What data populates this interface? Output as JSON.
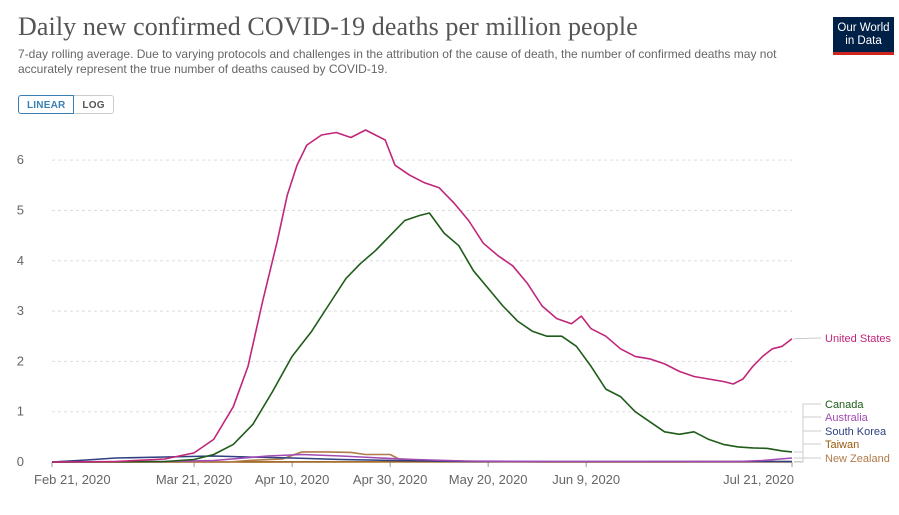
{
  "header": {
    "title": "Daily new confirmed COVID-19 deaths per million people",
    "subtitle": "7-day rolling average. Due to varying protocols and challenges in the attribution of the cause of death, the number of confirmed deaths may not accurately represent the true number of deaths caused by COVID-19.",
    "logo_line1": "Our World",
    "logo_line2": "in Data"
  },
  "controls": {
    "linear_label": "LINEAR",
    "log_label": "LOG",
    "selected": "LINEAR"
  },
  "chart_data": {
    "type": "line",
    "title": "Daily new confirmed COVID-19 deaths per million people",
    "xlabel": "",
    "ylabel": "",
    "ylim": [
      0,
      6.5
    ],
    "yticks": [
      0,
      1,
      2,
      3,
      4,
      5,
      6
    ],
    "xlim": [
      "2020-02-21",
      "2020-07-21"
    ],
    "xticks": [
      "Feb 21, 2020",
      "Mar 21, 2020",
      "Apr 10, 2020",
      "Apr 30, 2020",
      "May 20, 2020",
      "Jun 9, 2020",
      "Jul 21, 2020"
    ],
    "xtick_dates": [
      "2020-02-21",
      "2020-03-21",
      "2020-04-10",
      "2020-04-30",
      "2020-05-20",
      "2020-06-09",
      "2020-07-21"
    ],
    "grid": "horizontal dashed",
    "legend_placement": "right, end-of-line labels",
    "series": [
      {
        "name": "United States",
        "color": "#c0267a",
        "points": [
          [
            "2020-02-21",
            0
          ],
          [
            "2020-03-05",
            0.01
          ],
          [
            "2020-03-15",
            0.06
          ],
          [
            "2020-03-21",
            0.18
          ],
          [
            "2020-03-25",
            0.45
          ],
          [
            "2020-03-29",
            1.1
          ],
          [
            "2020-04-01",
            1.9
          ],
          [
            "2020-04-04",
            3.2
          ],
          [
            "2020-04-07",
            4.4
          ],
          [
            "2020-04-09",
            5.3
          ],
          [
            "2020-04-11",
            5.9
          ],
          [
            "2020-04-13",
            6.3
          ],
          [
            "2020-04-16",
            6.5
          ],
          [
            "2020-04-19",
            6.55
          ],
          [
            "2020-04-22",
            6.45
          ],
          [
            "2020-04-25",
            6.6
          ],
          [
            "2020-04-27",
            6.5
          ],
          [
            "2020-04-29",
            6.4
          ],
          [
            "2020-05-01",
            5.9
          ],
          [
            "2020-05-04",
            5.7
          ],
          [
            "2020-05-07",
            5.55
          ],
          [
            "2020-05-10",
            5.45
          ],
          [
            "2020-05-13",
            5.15
          ],
          [
            "2020-05-16",
            4.8
          ],
          [
            "2020-05-19",
            4.35
          ],
          [
            "2020-05-22",
            4.1
          ],
          [
            "2020-05-25",
            3.9
          ],
          [
            "2020-05-28",
            3.55
          ],
          [
            "2020-05-31",
            3.1
          ],
          [
            "2020-06-03",
            2.85
          ],
          [
            "2020-06-06",
            2.75
          ],
          [
            "2020-06-08",
            2.9
          ],
          [
            "2020-06-10",
            2.65
          ],
          [
            "2020-06-13",
            2.5
          ],
          [
            "2020-06-16",
            2.25
          ],
          [
            "2020-06-19",
            2.1
          ],
          [
            "2020-06-22",
            2.05
          ],
          [
            "2020-06-25",
            1.95
          ],
          [
            "2020-06-28",
            1.8
          ],
          [
            "2020-07-01",
            1.7
          ],
          [
            "2020-07-04",
            1.65
          ],
          [
            "2020-07-07",
            1.6
          ],
          [
            "2020-07-09",
            1.55
          ],
          [
            "2020-07-11",
            1.65
          ],
          [
            "2020-07-13",
            1.9
          ],
          [
            "2020-07-15",
            2.1
          ],
          [
            "2020-07-17",
            2.25
          ],
          [
            "2020-07-19",
            2.3
          ],
          [
            "2020-07-21",
            2.45
          ]
        ]
      },
      {
        "name": "Canada",
        "color": "#1f5c1a",
        "points": [
          [
            "2020-02-21",
            0
          ],
          [
            "2020-03-15",
            0.01
          ],
          [
            "2020-03-21",
            0.05
          ],
          [
            "2020-03-25",
            0.15
          ],
          [
            "2020-03-29",
            0.35
          ],
          [
            "2020-04-02",
            0.75
          ],
          [
            "2020-04-06",
            1.4
          ],
          [
            "2020-04-10",
            2.1
          ],
          [
            "2020-04-14",
            2.6
          ],
          [
            "2020-04-18",
            3.2
          ],
          [
            "2020-04-21",
            3.65
          ],
          [
            "2020-04-24",
            3.95
          ],
          [
            "2020-04-27",
            4.2
          ],
          [
            "2020-04-30",
            4.5
          ],
          [
            "2020-05-03",
            4.8
          ],
          [
            "2020-05-06",
            4.9
          ],
          [
            "2020-05-08",
            4.95
          ],
          [
            "2020-05-11",
            4.55
          ],
          [
            "2020-05-14",
            4.3
          ],
          [
            "2020-05-17",
            3.8
          ],
          [
            "2020-05-20",
            3.45
          ],
          [
            "2020-05-23",
            3.1
          ],
          [
            "2020-05-26",
            2.8
          ],
          [
            "2020-05-29",
            2.6
          ],
          [
            "2020-06-01",
            2.5
          ],
          [
            "2020-06-04",
            2.5
          ],
          [
            "2020-06-07",
            2.3
          ],
          [
            "2020-06-10",
            1.9
          ],
          [
            "2020-06-13",
            1.45
          ],
          [
            "2020-06-16",
            1.3
          ],
          [
            "2020-06-19",
            1.0
          ],
          [
            "2020-06-22",
            0.8
          ],
          [
            "2020-06-25",
            0.6
          ],
          [
            "2020-06-28",
            0.55
          ],
          [
            "2020-07-01",
            0.6
          ],
          [
            "2020-07-04",
            0.45
          ],
          [
            "2020-07-07",
            0.35
          ],
          [
            "2020-07-10",
            0.3
          ],
          [
            "2020-07-13",
            0.28
          ],
          [
            "2020-07-16",
            0.27
          ],
          [
            "2020-07-19",
            0.22
          ],
          [
            "2020-07-21",
            0.2
          ]
        ]
      },
      {
        "name": "Australia",
        "color": "#a24ab4",
        "points": [
          [
            "2020-02-21",
            0
          ],
          [
            "2020-03-15",
            0.01
          ],
          [
            "2020-03-25",
            0.03
          ],
          [
            "2020-04-05",
            0.12
          ],
          [
            "2020-04-12",
            0.15
          ],
          [
            "2020-04-20",
            0.12
          ],
          [
            "2020-04-28",
            0.08
          ],
          [
            "2020-05-05",
            0.05
          ],
          [
            "2020-05-15",
            0.02
          ],
          [
            "2020-06-01",
            0.01
          ],
          [
            "2020-07-10",
            0.01
          ],
          [
            "2020-07-15",
            0.03
          ],
          [
            "2020-07-21",
            0.08
          ]
        ]
      },
      {
        "name": "South Korea",
        "color": "#2f3f80",
        "points": [
          [
            "2020-02-21",
            0
          ],
          [
            "2020-02-28",
            0.04
          ],
          [
            "2020-03-05",
            0.08
          ],
          [
            "2020-03-15",
            0.1
          ],
          [
            "2020-03-25",
            0.12
          ],
          [
            "2020-04-01",
            0.1
          ],
          [
            "2020-04-10",
            0.08
          ],
          [
            "2020-04-20",
            0.05
          ],
          [
            "2020-05-01",
            0.03
          ],
          [
            "2020-05-15",
            0.01
          ],
          [
            "2020-07-21",
            0.01
          ]
        ]
      },
      {
        "name": "Taiwan",
        "color": "#9a5a10",
        "points": [
          [
            "2020-02-21",
            0
          ],
          [
            "2020-07-21",
            0.005
          ]
        ]
      },
      {
        "name": "New Zealand",
        "color": "#b07b4a",
        "points": [
          [
            "2020-02-21",
            0
          ],
          [
            "2020-03-28",
            0
          ],
          [
            "2020-04-01",
            0.03
          ],
          [
            "2020-04-08",
            0.06
          ],
          [
            "2020-04-12",
            0.2
          ],
          [
            "2020-04-17",
            0.2
          ],
          [
            "2020-04-22",
            0.19
          ],
          [
            "2020-04-25",
            0.15
          ],
          [
            "2020-04-30",
            0.15
          ],
          [
            "2020-05-02",
            0.05
          ],
          [
            "2020-05-10",
            0.03
          ],
          [
            "2020-05-20",
            0.01
          ],
          [
            "2020-06-01",
            0
          ],
          [
            "2020-07-21",
            0
          ]
        ]
      }
    ]
  }
}
